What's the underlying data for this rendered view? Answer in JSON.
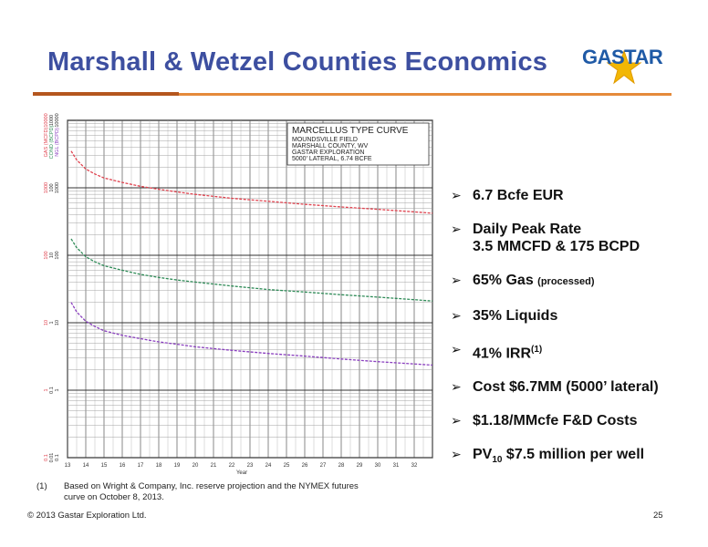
{
  "slide": {
    "title": "Marshall & Wetzel Counties Economics",
    "logo_text": "GASTAR",
    "page_number": "25",
    "copyright": "© 2013 Gastar Exploration Ltd.",
    "footnote_mark": "(1)",
    "footnote_text": "Based on Wright & Company, Inc. reserve projection and the NYMEX futures curve on October 8, 2013."
  },
  "bullets": [
    {
      "text": "6.7 Bcfe EUR"
    },
    {
      "line1": "Daily Peak Rate",
      "line2": "3.5 MMCFD & 175 BCPD"
    },
    {
      "text": "65% Gas",
      "small": "(processed)"
    },
    {
      "text": "35% Liquids"
    },
    {
      "text": "41% IRR",
      "sup": "(1)"
    },
    {
      "text": "Cost $6.7MM (5000’ lateral)"
    },
    {
      "text": "$1.18/MMcfe F&D Costs"
    },
    {
      "pre": "PV",
      "sub": "10",
      "post": " $7.5 million per well"
    }
  ],
  "colors": {
    "title": "#3d4fa0",
    "accent": "#e58a3a",
    "gas": "#e0434f",
    "condensate": "#2e8b57",
    "ngl": "#8a3fbf"
  },
  "chart_data": {
    "type": "line",
    "title": "MARCELLUS TYPE CURVE",
    "subtitle_lines": [
      "MOUNDSVILLE FIELD",
      "MARSHALL COUNTY, WV",
      "GASTAR EXPLORATION",
      "5000' LATERAL, 6.74 BCFE"
    ],
    "xlabel": "Year",
    "x_ticks": [
      13,
      14,
      15,
      16,
      17,
      18,
      19,
      20,
      21,
      22,
      23,
      24,
      25,
      26,
      27,
      28,
      29,
      30,
      31,
      32
    ],
    "xlim": [
      13,
      33
    ],
    "y_log": true,
    "y_axis_labels": [
      {
        "name": "GAS (MCFD)",
        "color": "#e0434f",
        "ticks": [
          "0.1",
          "1",
          "10",
          "100",
          "1000",
          "10000"
        ]
      },
      {
        "name": "COND (BCPD)",
        "color": "#2e8b57",
        "ticks": [
          "0.01",
          "0.1",
          "1",
          "10",
          "100",
          "1000"
        ]
      },
      {
        "name": "NGL (BCPD)",
        "color": "#8a3fbf",
        "ticks": [
          "0.1",
          "1",
          "10",
          "100",
          "1000",
          "10000"
        ]
      }
    ],
    "ylim_decades": [
      -1,
      4
    ],
    "series": [
      {
        "key": "gas",
        "color": "#e0434f",
        "x": [
          13.2,
          13.5,
          14,
          14.5,
          15,
          16,
          17,
          18,
          19,
          20,
          22,
          24,
          26,
          28,
          30,
          32,
          33
        ],
        "y": [
          3500,
          2600,
          1900,
          1600,
          1400,
          1200,
          1050,
          950,
          870,
          800,
          700,
          630,
          570,
          520,
          480,
          440,
          420
        ]
      },
      {
        "key": "condensate",
        "color": "#2e8b57",
        "x": [
          13.2,
          13.5,
          14,
          14.5,
          15,
          16,
          17,
          18,
          19,
          20,
          22,
          24,
          26,
          28,
          30,
          32,
          33
        ],
        "y": [
          175,
          130,
          95,
          80,
          70,
          60,
          52,
          47,
          43,
          40,
          35,
          31,
          28.5,
          26,
          24,
          22,
          21
        ]
      },
      {
        "key": "ngl",
        "color": "#8a3fbf",
        "x": [
          13.2,
          13.5,
          14,
          14.5,
          15,
          16,
          17,
          18,
          19,
          20,
          22,
          24,
          26,
          28,
          30,
          32,
          33
        ],
        "y": [
          20,
          14.5,
          10.5,
          8.8,
          7.6,
          6.5,
          5.8,
          5.2,
          4.8,
          4.4,
          3.9,
          3.5,
          3.2,
          2.9,
          2.65,
          2.45,
          2.35
        ]
      }
    ]
  }
}
